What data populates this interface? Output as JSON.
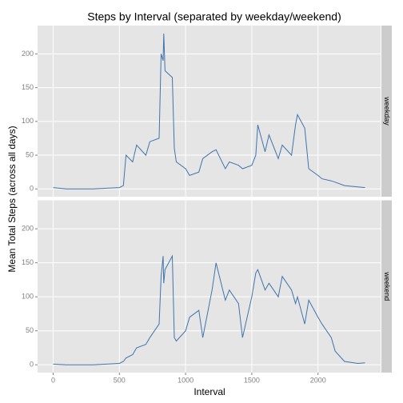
{
  "chart_data": {
    "type": "line",
    "title": "Steps by Interval (separated by weekday/weekend)",
    "xlabel": "Interval",
    "ylabel": "Mean Total Steps (across all days)",
    "color": "#3f74ad",
    "grid": true,
    "xlim": [
      -117.75,
      2472.75
    ],
    "ylim": [
      -11.5,
      241.9
    ],
    "xticks": [
      0,
      500,
      1000,
      1500,
      2000
    ],
    "yticks": [
      0,
      50,
      100,
      150,
      200
    ],
    "x": [
      0,
      100,
      200,
      300,
      400,
      500,
      530,
      550,
      600,
      630,
      700,
      730,
      800,
      815,
      830,
      835,
      845,
      900,
      915,
      930,
      1000,
      1030,
      1100,
      1130,
      1200,
      1230,
      1300,
      1330,
      1400,
      1430,
      1500,
      1530,
      1545,
      1600,
      1630,
      1700,
      1730,
      1800,
      1830,
      1845,
      1900,
      1930,
      2000,
      2030,
      2100,
      2130,
      2200,
      2300,
      2355
    ],
    "series": [
      {
        "name": "weekday",
        "values": [
          2,
          0,
          0,
          0,
          1,
          2,
          5,
          50,
          40,
          65,
          50,
          70,
          75,
          200,
          190,
          230,
          175,
          165,
          60,
          40,
          30,
          20,
          25,
          45,
          55,
          58,
          30,
          40,
          35,
          30,
          35,
          50,
          95,
          55,
          80,
          45,
          65,
          50,
          95,
          110,
          90,
          30,
          20,
          15,
          12,
          10,
          5,
          3,
          2
        ]
      },
      {
        "name": "weekend",
        "values": [
          1,
          0,
          0,
          0,
          1,
          2,
          5,
          10,
          15,
          25,
          30,
          40,
          60,
          130,
          160,
          120,
          140,
          160,
          40,
          35,
          50,
          70,
          80,
          40,
          110,
          150,
          95,
          110,
          90,
          40,
          100,
          135,
          140,
          110,
          120,
          100,
          130,
          110,
          90,
          100,
          60,
          95,
          70,
          60,
          40,
          20,
          5,
          2,
          3
        ]
      }
    ]
  }
}
